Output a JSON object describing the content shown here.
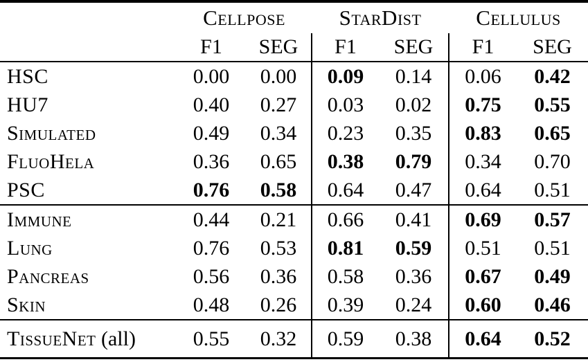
{
  "header": {
    "methods": [
      "Cellpose",
      "StarDist",
      "Cellulus"
    ],
    "metric_cols": [
      "F1",
      "SEG",
      "F1",
      "SEG",
      "F1",
      "SEG"
    ]
  },
  "colors": {
    "text": "#000000",
    "background": "#ffffff",
    "rule": "#000000"
  },
  "rows": [
    {
      "label": "HSC",
      "suffix": "",
      "values": [
        "0.00",
        "0.00",
        "0.09",
        "0.14",
        "0.06",
        "0.42"
      ],
      "bold": [
        false,
        false,
        true,
        false,
        false,
        true
      ]
    },
    {
      "label": "HU7",
      "suffix": "",
      "values": [
        "0.40",
        "0.27",
        "0.03",
        "0.02",
        "0.75",
        "0.55"
      ],
      "bold": [
        false,
        false,
        false,
        false,
        true,
        true
      ]
    },
    {
      "label": "Simulated",
      "suffix": "",
      "values": [
        "0.49",
        "0.34",
        "0.23",
        "0.35",
        "0.83",
        "0.65"
      ],
      "bold": [
        false,
        false,
        false,
        false,
        true,
        true
      ]
    },
    {
      "label": "FluoHela",
      "suffix": "",
      "values": [
        "0.36",
        "0.65",
        "0.38",
        "0.79",
        "0.34",
        "0.70"
      ],
      "bold": [
        false,
        false,
        true,
        true,
        false,
        false
      ]
    },
    {
      "label": "PSC",
      "suffix": "",
      "values": [
        "0.76",
        "0.58",
        "0.64",
        "0.47",
        "0.64",
        "0.51"
      ],
      "bold": [
        true,
        true,
        false,
        false,
        false,
        false
      ]
    },
    {
      "label": "Immune",
      "suffix": "",
      "values": [
        "0.44",
        "0.21",
        "0.66",
        "0.41",
        "0.69",
        "0.57"
      ],
      "bold": [
        false,
        false,
        false,
        false,
        true,
        true
      ]
    },
    {
      "label": "Lung",
      "suffix": "",
      "values": [
        "0.76",
        "0.53",
        "0.81",
        "0.59",
        "0.51",
        "0.51"
      ],
      "bold": [
        false,
        false,
        true,
        true,
        false,
        false
      ]
    },
    {
      "label": "Pancreas",
      "suffix": "",
      "values": [
        "0.56",
        "0.36",
        "0.58",
        "0.36",
        "0.67",
        "0.49"
      ],
      "bold": [
        false,
        false,
        false,
        false,
        true,
        true
      ]
    },
    {
      "label": "Skin",
      "suffix": "",
      "values": [
        "0.48",
        "0.26",
        "0.39",
        "0.24",
        "0.60",
        "0.46"
      ],
      "bold": [
        false,
        false,
        false,
        false,
        true,
        true
      ]
    },
    {
      "label": "TissueNet",
      "suffix": " (all)",
      "values": [
        "0.55",
        "0.32",
        "0.59",
        "0.38",
        "0.64",
        "0.52"
      ],
      "bold": [
        false,
        false,
        false,
        false,
        true,
        true
      ]
    }
  ]
}
